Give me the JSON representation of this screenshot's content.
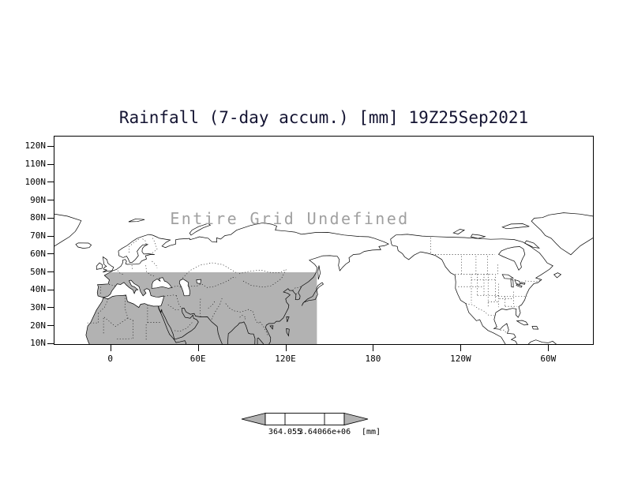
{
  "title": "Rainfall (7-day accum.) [mm] 19Z25Sep2021",
  "plot": {
    "undefined_message": "Entire Grid Undefined",
    "y_axis_labels": [
      "120N",
      "110N",
      "100N",
      "90N",
      "80N",
      "70N",
      "60N",
      "50N",
      "40N",
      "30N",
      "20N",
      "10N"
    ],
    "x_axis_labels": [
      "0",
      "60E",
      "120E",
      "180",
      "120W",
      "60W"
    ]
  },
  "colorbar": {
    "labels": [
      "364.055",
      "3.64066e+06"
    ],
    "unit": "[mm]",
    "arrow_color": "#b2b2b2",
    "cell_color": "#ffffff"
  },
  "colors": {
    "shade_gray": "#b2b2b2",
    "title_text": "#141432",
    "undefined_text": "#a0a0a0",
    "map_line": "#000000",
    "background": "#ffffff"
  },
  "chart_data": {
    "type": "map",
    "title": "Rainfall (7-day accum.) [mm] 19Z25Sep2021",
    "projection": "latlon",
    "status": "Entire Grid Undefined",
    "y_ticks": [
      "120N",
      "110N",
      "100N",
      "90N",
      "80N",
      "70N",
      "60N",
      "50N",
      "40N",
      "30N",
      "20N",
      "10N"
    ],
    "x_ticks": [
      "0",
      "60E",
      "120E",
      "180",
      "120W",
      "60W"
    ],
    "lat_range_deg": [
      10,
      120
    ],
    "lon_range_deg": [
      -38.8,
      331.2
    ],
    "grid": false,
    "shaded_region": "gray band over Africa/Eurasia approx 10N-50N, 17W-141E",
    "colorbar_tick_values": [
      364.055,
      3640660
    ],
    "unit": "mm",
    "values": []
  }
}
